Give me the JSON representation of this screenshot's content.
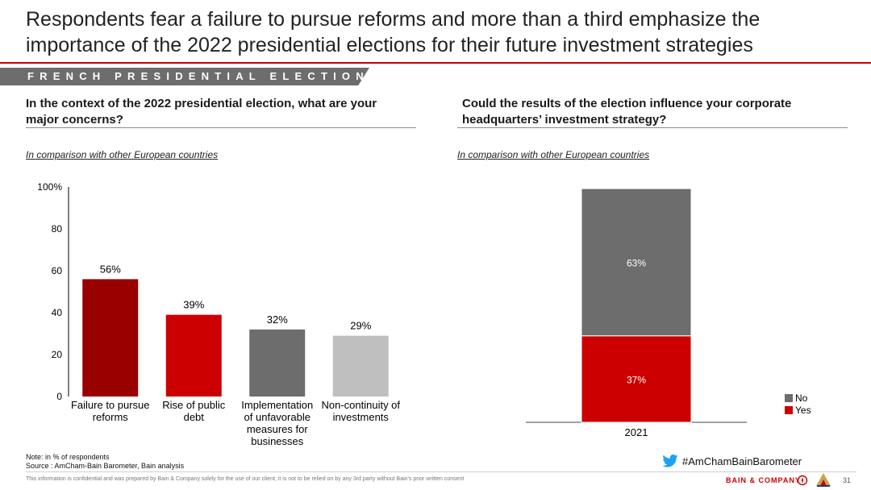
{
  "header": {
    "title": "Respondents fear a failure to pursue reforms and more than a third emphasize the importance of the 2022 presidential elections for their future investment strategies",
    "section_banner": "FRENCH PRESIDENTIAL ELECTIONS"
  },
  "left_panel": {
    "question": "In the context of the 2022 presidential election, what are your major concerns?",
    "subtitle": "In comparison with other European countries"
  },
  "right_panel": {
    "question": "Could the results of the election influence your corporate headquarters’ investment strategy?",
    "subtitle": "In comparison with other European countries"
  },
  "chart_data": [
    {
      "type": "bar",
      "title": "In the context of the 2022 presidential election, what are your major concerns?",
      "categories": [
        [
          "Failure to pursue",
          "reforms"
        ],
        [
          "Rise of public",
          "debt"
        ],
        [
          "Implementation",
          "of unfavorable",
          "measures for",
          "businesses"
        ],
        [
          "Non-continuity of",
          "investments"
        ]
      ],
      "values": [
        56,
        39,
        32,
        29
      ],
      "data_labels": [
        "56%",
        "39%",
        "32%",
        "29%"
      ],
      "colors": [
        "#990000",
        "#cc0000",
        "#6d6d6d",
        "#bfbfbf"
      ],
      "ylim": [
        0,
        100
      ],
      "yticks": [
        0,
        20,
        40,
        60,
        80,
        100
      ],
      "ytick_labels": [
        "0",
        "20",
        "40",
        "60",
        "80",
        "100%"
      ],
      "xlabel": "",
      "ylabel": ""
    },
    {
      "type": "bar",
      "stacked": true,
      "title": "Could the results of the election influence your corporate headquarters’ investment strategy?",
      "categories": [
        "2021"
      ],
      "series": [
        {
          "name": "Yes",
          "values": [
            37
          ],
          "label": "37%",
          "color": "#cc0000"
        },
        {
          "name": "No",
          "values": [
            63
          ],
          "label": "63%",
          "color": "#6d6d6d"
        }
      ],
      "ylim": [
        0,
        100
      ],
      "legend": [
        "No",
        "Yes"
      ],
      "legend_position": "bottom-right"
    }
  ],
  "footer": {
    "note": "Note: in % of respondents",
    "source": "Source : AmCham-Bain Barometer, Bain analysis",
    "twitter_handle": "#AmChamBainBarometer",
    "confidential": "This information is confidential and was prepared by Bain & Company solely for the use of our client; it is not to be relied on by any 3rd party without Bain's prior written consent",
    "brand": "BAIN & COMPANY",
    "page_number": "31"
  },
  "colors": {
    "accent_red": "#cc0000",
    "dark_red": "#990000",
    "dark_gray": "#6d6d6d",
    "light_gray": "#bfbfbf",
    "twitter_blue": "#1da1f2"
  },
  "icons": {
    "twitter": "twitter-bird-icon",
    "bain": "bain-compass-icon",
    "amcham": "amcham-logo-icon"
  }
}
